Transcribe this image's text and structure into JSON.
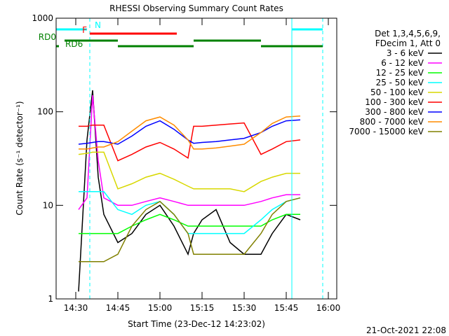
{
  "chart_data": {
    "type": "line",
    "title": "RHESSI Observing Summary Count Rates",
    "xlabel": "Start Time (23-Dec-12 14:23:02)",
    "ylabel": "Count Rate (s⁻¹ detector⁻¹)",
    "legend_header": [
      "Det 1,3,4,5,6,9,",
      "FDecim 1, Att 0"
    ],
    "footer": "21-Oct-2021 22:08",
    "log_y": true,
    "xlim": [
      "14:23",
      "16:03"
    ],
    "xticks": [
      "14:30",
      "14:45",
      "15:00",
      "15:15",
      "15:30",
      "15:45",
      "16:00"
    ],
    "ylim": [
      1,
      1000
    ],
    "yticks": [
      1,
      10,
      100,
      1000
    ],
    "x": [
      "14:31",
      "14:34",
      "14:36",
      "14:38",
      "14:40",
      "14:45",
      "14:50",
      "14:55",
      "15:00",
      "15:05",
      "15:10",
      "15:12",
      "15:15",
      "15:20",
      "15:25",
      "15:30",
      "15:36",
      "15:40",
      "15:45",
      "15:50"
    ],
    "series": [
      {
        "name": "3 - 6 keV",
        "color": "#000000",
        "values": [
          1.2,
          50,
          170,
          20,
          8,
          4,
          5,
          8,
          10,
          6,
          3,
          5,
          7,
          9,
          4,
          3,
          3,
          5,
          8,
          7
        ]
      },
      {
        "name": "6 - 12 keV",
        "color": "#ff00ff",
        "values": [
          9,
          12,
          150,
          30,
          12,
          10,
          10,
          11,
          12,
          11,
          10,
          10,
          10,
          10,
          10,
          10,
          11,
          12,
          13,
          13
        ]
      },
      {
        "name": "12 - 25 keV",
        "color": "#00ff00",
        "values": [
          5,
          5,
          5,
          5,
          5,
          5,
          6,
          7,
          8,
          7,
          6,
          6,
          6,
          6,
          6,
          6,
          6,
          7,
          8,
          8
        ]
      },
      {
        "name": "25 - 50 keV",
        "color": "#00ffff",
        "values": [
          14,
          14,
          14,
          14,
          14,
          9,
          8,
          10,
          11,
          8,
          5,
          5,
          5,
          5,
          5,
          5,
          7,
          9,
          11,
          12
        ]
      },
      {
        "name": "50 - 100 keV",
        "color": "#d8d800",
        "values": [
          35,
          36,
          37,
          37,
          37,
          15,
          17,
          20,
          22,
          19,
          16,
          15,
          15,
          15,
          15,
          14,
          18,
          20,
          22,
          22
        ]
      },
      {
        "name": "100 - 300 keV",
        "color": "#ff0000",
        "values": [
          70,
          70,
          72,
          72,
          72,
          30,
          35,
          42,
          47,
          40,
          32,
          70,
          70,
          72,
          74,
          76,
          35,
          40,
          48,
          50
        ]
      },
      {
        "name": "300 - 800 keV",
        "color": "#0000ff",
        "values": [
          45,
          46,
          47,
          48,
          48,
          45,
          55,
          70,
          80,
          65,
          50,
          46,
          47,
          48,
          50,
          52,
          60,
          70,
          80,
          82
        ]
      },
      {
        "name": "800 - 7000 keV",
        "color": "#ff8c00",
        "values": [
          40,
          40,
          41,
          42,
          42,
          48,
          62,
          80,
          88,
          72,
          50,
          40,
          40,
          41,
          43,
          45,
          60,
          75,
          88,
          90
        ]
      },
      {
        "name": "7000 - 15000 keV",
        "color": "#808000",
        "values": [
          2.5,
          2.5,
          2.5,
          2.5,
          2.5,
          3,
          6,
          9,
          11,
          8,
          5,
          3,
          3,
          3,
          3,
          3,
          5,
          8,
          11,
          12
        ]
      }
    ],
    "flags": [
      {
        "label": "N",
        "color": "#00ffff",
        "segments": [
          [
            "14:23",
            "14:34"
          ],
          [
            "15:47",
            "15:58"
          ]
        ]
      },
      {
        "label": "F",
        "color": "#ff0000",
        "segments": [
          [
            "14:35",
            "15:06"
          ]
        ]
      },
      {
        "label": "RD0",
        "color": "#008000",
        "segments": [
          [
            "14:26",
            "14:45"
          ],
          [
            "15:12",
            "15:36"
          ]
        ]
      },
      {
        "label": "RD6",
        "color": "#008000",
        "segments": [
          [
            "14:23",
            "14:24"
          ],
          [
            "14:45",
            "15:12"
          ],
          [
            "15:36",
            "15:58"
          ]
        ]
      }
    ],
    "vlines": [
      {
        "x": "14:23",
        "color": "#00ffff",
        "style": "solid"
      },
      {
        "x": "14:35",
        "color": "#00ffff",
        "style": "dashed"
      },
      {
        "x": "15:47",
        "color": "#00ffff",
        "style": "solid"
      },
      {
        "x": "15:58",
        "color": "#00ffff",
        "style": "dashed"
      }
    ]
  }
}
